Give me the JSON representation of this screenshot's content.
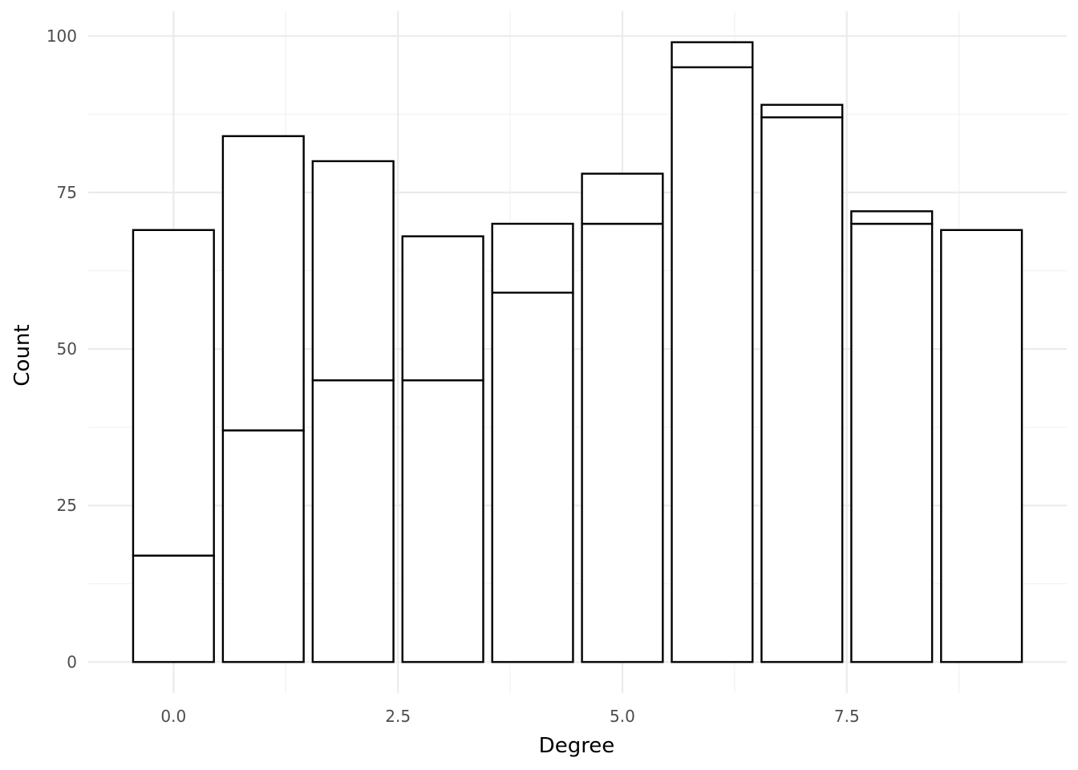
{
  "chart_data": {
    "type": "bar",
    "stacked": true,
    "x": [
      0,
      1,
      2,
      3,
      4,
      5,
      6,
      7,
      8,
      9
    ],
    "series": [
      {
        "values": [
          17,
          37,
          45,
          45,
          59,
          70,
          95,
          87,
          70,
          69
        ]
      },
      {
        "values": [
          52,
          47,
          35,
          23,
          11,
          8,
          4,
          2,
          2,
          0
        ]
      }
    ],
    "totals": [
      69,
      84,
      80,
      68,
      70,
      78,
      99,
      89,
      72,
      69
    ],
    "xlabel": "Degree",
    "ylabel": "Count",
    "x_ticks": [
      "0.0",
      "2.5",
      "5.0",
      "7.5"
    ],
    "y_ticks": [
      "0",
      "25",
      "50",
      "75",
      "100"
    ],
    "xlim": [
      -0.95,
      9.95
    ],
    "ylim": [
      -4.95,
      103.95
    ],
    "bar_width": 0.9,
    "grid": true,
    "legend": "none",
    "colors": {
      "fill": "#ffffff",
      "outline": "#000000",
      "grid": "#ebebeb"
    }
  }
}
